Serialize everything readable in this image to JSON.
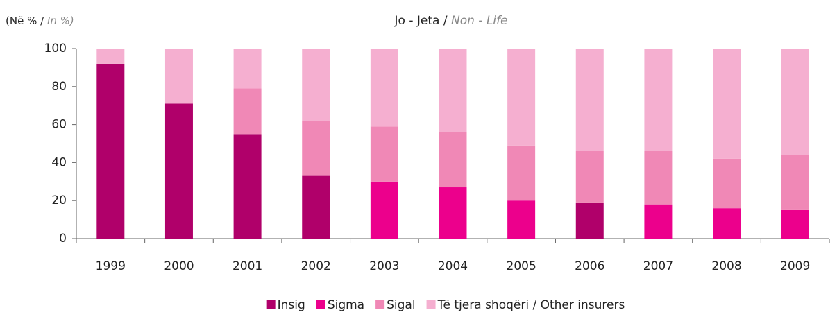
{
  "chart_data": {
    "type": "stacked_bar",
    "title": {
      "text": "Jo - Jeta /",
      "translation": "Non - Life"
    },
    "y_label": {
      "text": "(Në % /",
      "translation": "In %)"
    },
    "categories": [
      "1999",
      "2000",
      "2001",
      "2002",
      "2003",
      "2004",
      "2005",
      "2006",
      "2007",
      "2008",
      "2009"
    ],
    "series": [
      {
        "name": "Insig",
        "color": "#b0006a",
        "values": [
          92,
          71,
          55,
          33,
          0,
          0,
          0,
          19,
          0,
          0,
          0
        ]
      },
      {
        "name": "Sigma",
        "color": "#ec008c",
        "values": [
          0,
          0,
          0,
          0,
          30,
          27,
          20,
          0,
          18,
          16,
          15
        ]
      },
      {
        "name": "Sigal",
        "color": "#f088b6",
        "values": [
          0,
          0,
          24,
          29,
          29,
          29,
          29,
          27,
          28,
          26,
          29
        ]
      },
      {
        "name": "Të tjera shoqëri / Other insurers",
        "color": "#f5afd0",
        "values": [
          8,
          29,
          21,
          38,
          41,
          44,
          51,
          54,
          54,
          58,
          56
        ]
      }
    ],
    "ylim": [
      0,
      100
    ],
    "yticks": [
      0,
      20,
      40,
      60,
      80,
      100
    ],
    "legend": "bottom"
  }
}
